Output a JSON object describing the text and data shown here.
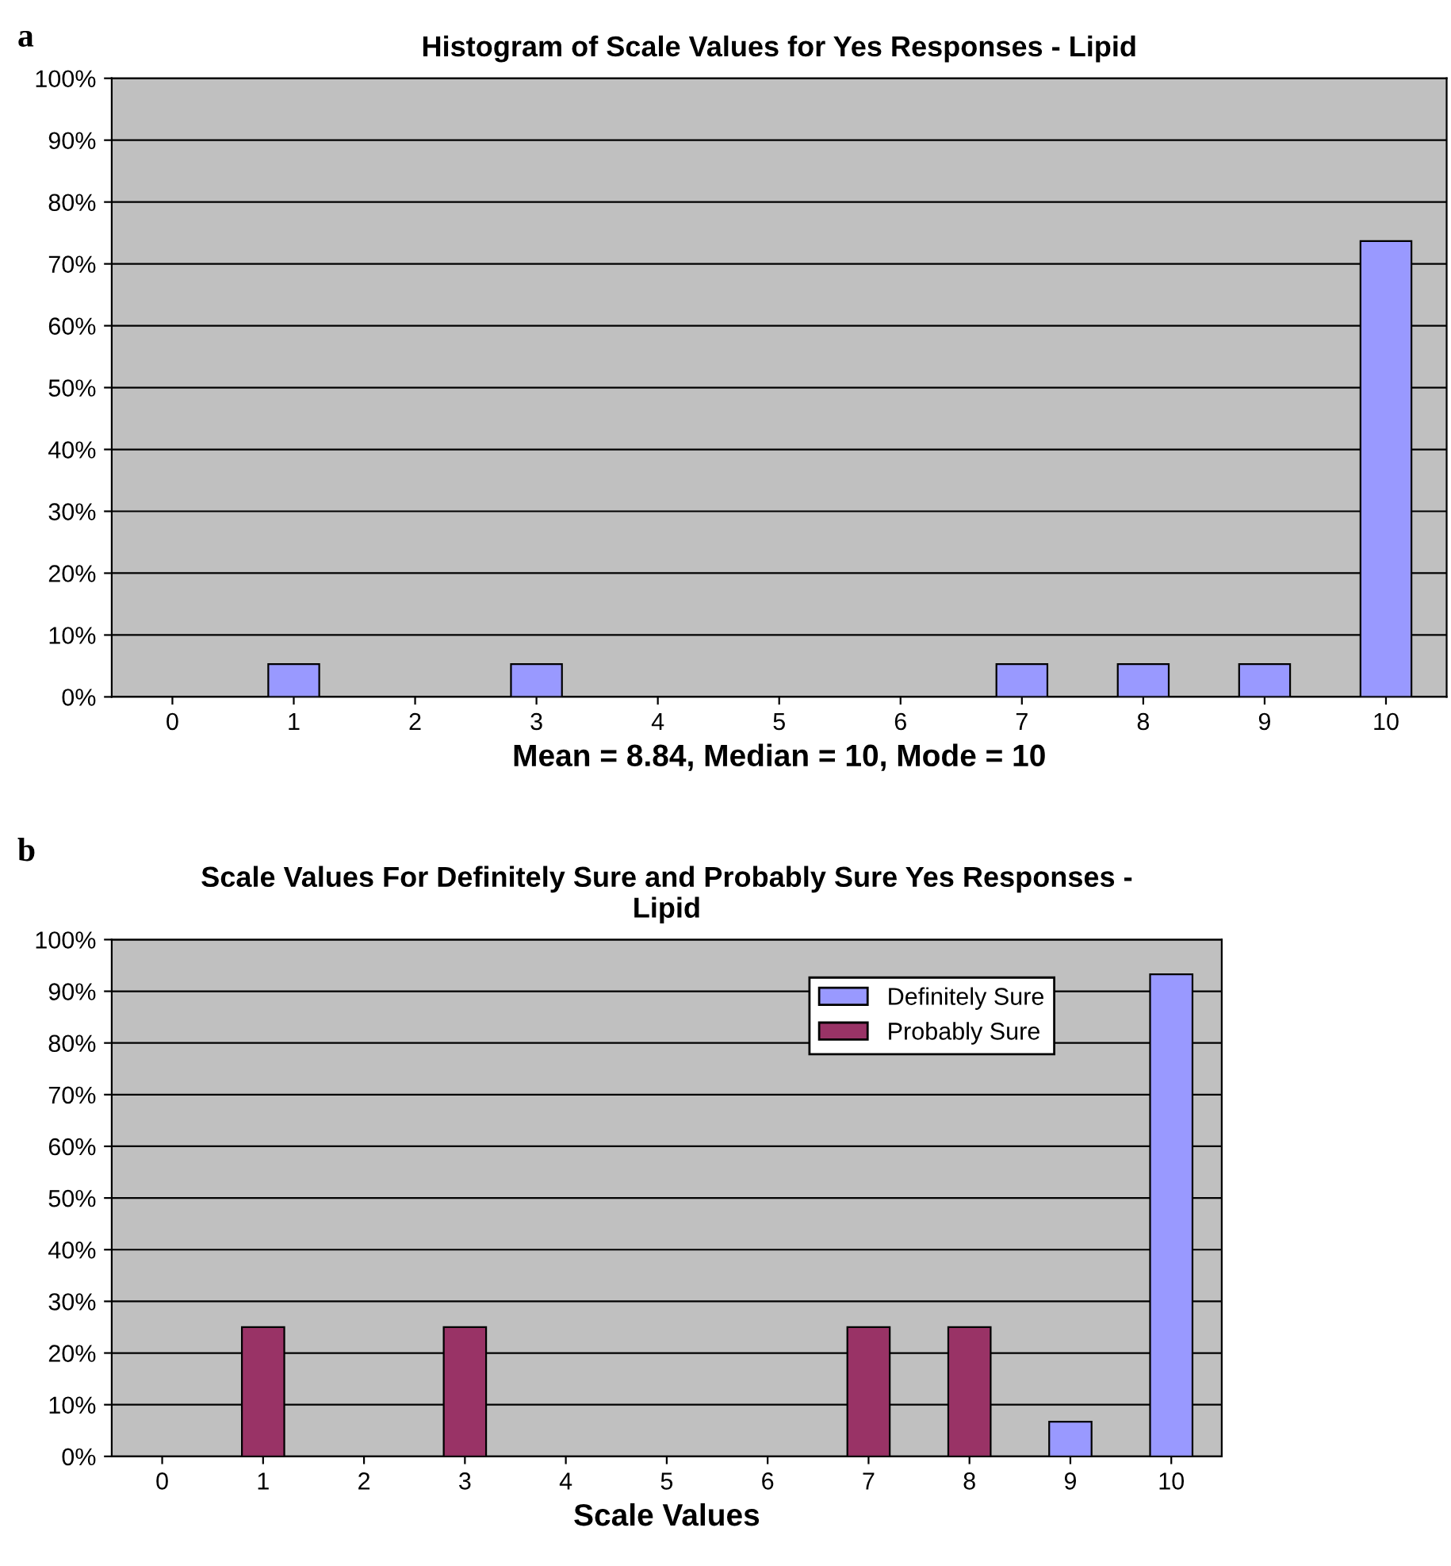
{
  "chart_data": [
    {
      "type": "bar",
      "title": "Histogram of Scale Values for Yes Responses - Lipid",
      "xlabel": "Mean = 8.84, Median = 10, Mode = 10",
      "annotations": [
        "a"
      ],
      "categories": [
        "0",
        "1",
        "2",
        "3",
        "4",
        "5",
        "6",
        "7",
        "8",
        "9",
        "10"
      ],
      "series": [
        {
          "color": "#9999ff",
          "values": [
            null,
            5.3,
            null,
            5.3,
            null,
            null,
            null,
            5.3,
            5.3,
            5.3,
            73.7
          ]
        }
      ],
      "ylim": [
        0,
        100
      ],
      "yticks": [
        {
          "value": 0,
          "label": "0%"
        },
        {
          "value": 10,
          "label": "10%"
        },
        {
          "value": 20,
          "label": "20%"
        },
        {
          "value": 30,
          "label": "30%"
        },
        {
          "value": 40,
          "label": "40%"
        },
        {
          "value": 50,
          "label": "50%"
        },
        {
          "value": 60,
          "label": "60%"
        },
        {
          "value": 70,
          "label": "70%"
        },
        {
          "value": 80,
          "label": "80%"
        },
        {
          "value": 90,
          "label": "90%"
        },
        {
          "value": 100,
          "label": "100%"
        }
      ],
      "grid": "y",
      "legend": false
    },
    {
      "type": "bar",
      "title": "Scale Values For Definitely Sure and Probably Sure Yes Responses -\nLipid",
      "xlabel": "Scale Values",
      "annotations": [
        "b"
      ],
      "categories": [
        "0",
        "1",
        "2",
        "3",
        "4",
        "5",
        "6",
        "7",
        "8",
        "9",
        "10"
      ],
      "series": [
        {
          "name": "Definitely Sure",
          "color": "#9999ff",
          "values": [
            null,
            null,
            null,
            null,
            null,
            null,
            null,
            null,
            null,
            6.7,
            93.3
          ]
        },
        {
          "name": "Probably Sure",
          "color": "#993366",
          "values": [
            null,
            25,
            null,
            25,
            null,
            null,
            null,
            25,
            25,
            null,
            null
          ]
        }
      ],
      "ylim": [
        0,
        100
      ],
      "yticks": [
        {
          "value": 0,
          "label": "0%"
        },
        {
          "value": 10,
          "label": "10%"
        },
        {
          "value": 20,
          "label": "20%"
        },
        {
          "value": 30,
          "label": "30%"
        },
        {
          "value": 40,
          "label": "40%"
        },
        {
          "value": 50,
          "label": "50%"
        },
        {
          "value": 60,
          "label": "60%"
        },
        {
          "value": 70,
          "label": "70%"
        },
        {
          "value": 80,
          "label": "80%"
        },
        {
          "value": 90,
          "label": "90%"
        },
        {
          "value": 100,
          "label": "100%"
        }
      ],
      "grid": "y",
      "legend": "top right"
    }
  ]
}
